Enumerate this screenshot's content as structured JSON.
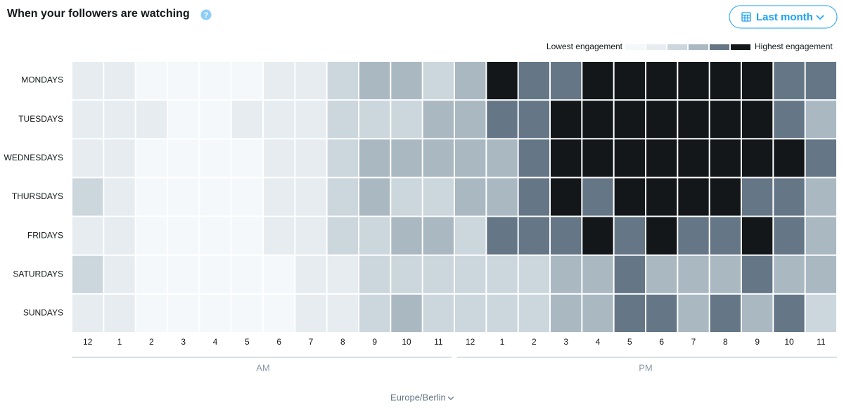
{
  "header": {
    "title": "When your followers are watching",
    "help_icon": "?",
    "button": "Last month"
  },
  "chart_data": {
    "type": "heatmap",
    "legend": {
      "low_label": "Lowest engagement",
      "high_label": "Highest engagement"
    },
    "colors": [
      "#f5f8fa",
      "#e6ecf0",
      "#ccd6dd",
      "#aab8c2",
      "#657786",
      "#14171a"
    ],
    "x_categories": [
      "12",
      "1",
      "2",
      "3",
      "4",
      "5",
      "6",
      "7",
      "8",
      "9",
      "10",
      "11",
      "12",
      "1",
      "2",
      "3",
      "4",
      "5",
      "6",
      "7",
      "8",
      "9",
      "10",
      "11"
    ],
    "x_groups": [
      {
        "label": "AM",
        "count": 12
      },
      {
        "label": "PM",
        "count": 12
      }
    ],
    "y_categories": [
      "MONDAYS",
      "TUESDAYS",
      "WEDNESDAYS",
      "THURSDAYS",
      "FRIDAYS",
      "SATURDAYS",
      "SUNDAYS"
    ],
    "values": [
      [
        1,
        1,
        0,
        0,
        0,
        0,
        1,
        1,
        2,
        3,
        3,
        2,
        3,
        5,
        4,
        4,
        5,
        5,
        5,
        5,
        5,
        5,
        4,
        4
      ],
      [
        1,
        1,
        1,
        0,
        0,
        1,
        1,
        1,
        2,
        2,
        2,
        3,
        3,
        4,
        4,
        5,
        5,
        5,
        5,
        5,
        5,
        5,
        4,
        3
      ],
      [
        1,
        1,
        0,
        0,
        0,
        0,
        1,
        1,
        2,
        3,
        3,
        3,
        3,
        3,
        4,
        5,
        5,
        5,
        5,
        5,
        5,
        5,
        5,
        4
      ],
      [
        2,
        1,
        0,
        0,
        0,
        0,
        1,
        1,
        2,
        3,
        2,
        2,
        3,
        3,
        4,
        5,
        4,
        5,
        5,
        5,
        5,
        4,
        4,
        3
      ],
      [
        1,
        1,
        0,
        0,
        0,
        0,
        1,
        1,
        2,
        2,
        3,
        3,
        2,
        4,
        4,
        4,
        5,
        4,
        5,
        4,
        4,
        5,
        4,
        3
      ],
      [
        2,
        1,
        0,
        0,
        0,
        0,
        0,
        1,
        1,
        2,
        2,
        2,
        2,
        2,
        2,
        3,
        3,
        4,
        3,
        3,
        3,
        4,
        3,
        3
      ],
      [
        1,
        1,
        0,
        0,
        0,
        0,
        0,
        1,
        1,
        2,
        3,
        2,
        2,
        2,
        2,
        3,
        3,
        4,
        4,
        3,
        4,
        3,
        4,
        2
      ]
    ]
  },
  "timezone": "Europe/Berlin"
}
